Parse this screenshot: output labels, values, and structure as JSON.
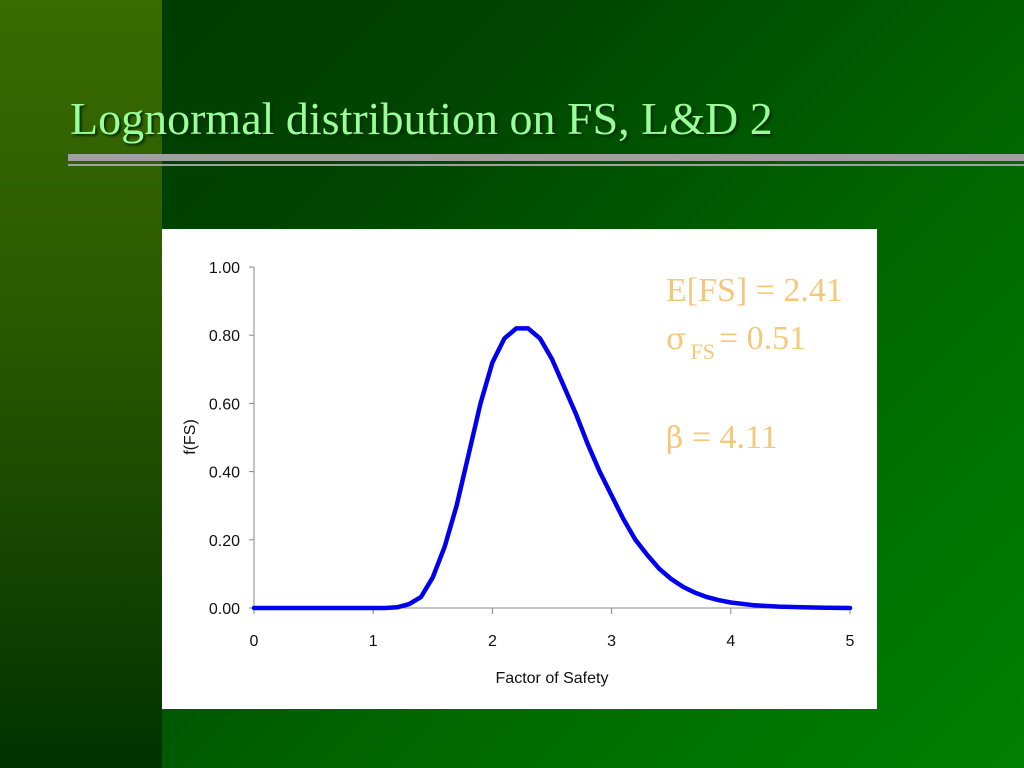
{
  "slide": {
    "title": "Lognormal distribution on FS, L&D 2"
  },
  "stats": {
    "mean": "E[FS] = 2.41",
    "sigma_symbol": "σ",
    "sigma_subscript": "FS",
    "sigma_value": "= 0.51",
    "beta_symbol": "β",
    "beta_value": "= 4.11"
  },
  "colors": {
    "title": "#99ff99",
    "stats_text": "#f5c77a",
    "curve": "#0000ee"
  },
  "chart_data": {
    "type": "line",
    "xlabel": "Factor of Safety",
    "ylabel": "f(FS)",
    "xlim": [
      0,
      5
    ],
    "ylim": [
      0,
      1
    ],
    "x_ticks": [
      "0",
      "1",
      "2",
      "3",
      "4",
      "5"
    ],
    "y_ticks": [
      "0.00",
      "0.20",
      "0.40",
      "0.60",
      "0.80",
      "1.00"
    ],
    "grid": false,
    "series": [
      {
        "x": [
          0,
          0.2,
          0.4,
          0.6,
          0.8,
          1.0,
          1.1,
          1.2,
          1.3,
          1.4,
          1.5,
          1.6,
          1.7,
          1.8,
          1.9,
          2.0,
          2.1,
          2.2,
          2.3,
          2.4,
          2.5,
          2.6,
          2.7,
          2.8,
          2.9,
          3.0,
          3.1,
          3.2,
          3.3,
          3.4,
          3.5,
          3.6,
          3.7,
          3.8,
          3.9,
          4.0,
          4.2,
          4.4,
          4.6,
          4.8,
          5.0
        ],
        "y": [
          0,
          0,
          0,
          0,
          0,
          0,
          0,
          0.002,
          0.011,
          0.032,
          0.09,
          0.18,
          0.3,
          0.45,
          0.6,
          0.72,
          0.79,
          0.82,
          0.82,
          0.79,
          0.73,
          0.65,
          0.57,
          0.48,
          0.4,
          0.33,
          0.26,
          0.2,
          0.155,
          0.115,
          0.085,
          0.062,
          0.045,
          0.032,
          0.023,
          0.016,
          0.008,
          0.004,
          0.002,
          0.001,
          0
        ]
      }
    ]
  }
}
